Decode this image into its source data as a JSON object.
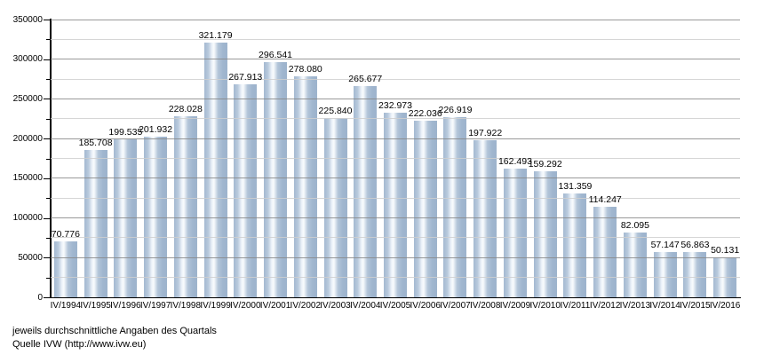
{
  "chart_data": {
    "type": "bar",
    "title": "",
    "xlabel": "",
    "ylabel": "",
    "categories": [
      "IV/1994",
      "IV/1995",
      "IV/1996",
      "IV/1997",
      "IV/1998",
      "IV/1999",
      "IV/2000",
      "IV/2001",
      "IV/2002",
      "IV/2003",
      "IV/2004",
      "IV/2005",
      "IV/2006",
      "IV/2007",
      "IV/2008",
      "IV/2009",
      "IV/2010",
      "IV/2011",
      "IV/2012",
      "IV/2013",
      "IV/2014",
      "IV/2015",
      "IV/2016"
    ],
    "values": [
      70776,
      185708,
      199535,
      201932,
      228028,
      321179,
      267913,
      296541,
      278080,
      225840,
      265677,
      232973,
      222036,
      226919,
      197922,
      162493,
      159292,
      131359,
      114247,
      82095,
      57147,
      56863,
      50131
    ],
    "value_labels": [
      "70.776",
      "185.708",
      "199.535",
      "201.932",
      "228.028",
      "321.179",
      "267.913",
      "296.541",
      "278.080",
      "225.840",
      "265.677",
      "232.973",
      "222.036",
      "226.919",
      "197.922",
      "162.493",
      "159.292",
      "131.359",
      "114.247",
      "82.095",
      "57.147",
      "56.863",
      "50.131"
    ],
    "ylim": [
      0,
      350000
    ],
    "y_major_step": 50000,
    "y_minor_step": 25000,
    "y_tick_labels": [
      "0",
      "50000",
      "100000",
      "150000",
      "200000",
      "250000",
      "300000",
      "350000"
    ],
    "grid": true,
    "legend": "none",
    "bar_color": "#a4b9d1",
    "bar_highlight": "#f8fbfd",
    "grid_major_color": "#878787",
    "grid_minor_color": "#cfcfcf"
  },
  "footer": {
    "line1": "jeweils durchschnittliche Angaben des Quartals",
    "line2": "Quelle IVW (http://www.ivw.eu)"
  }
}
